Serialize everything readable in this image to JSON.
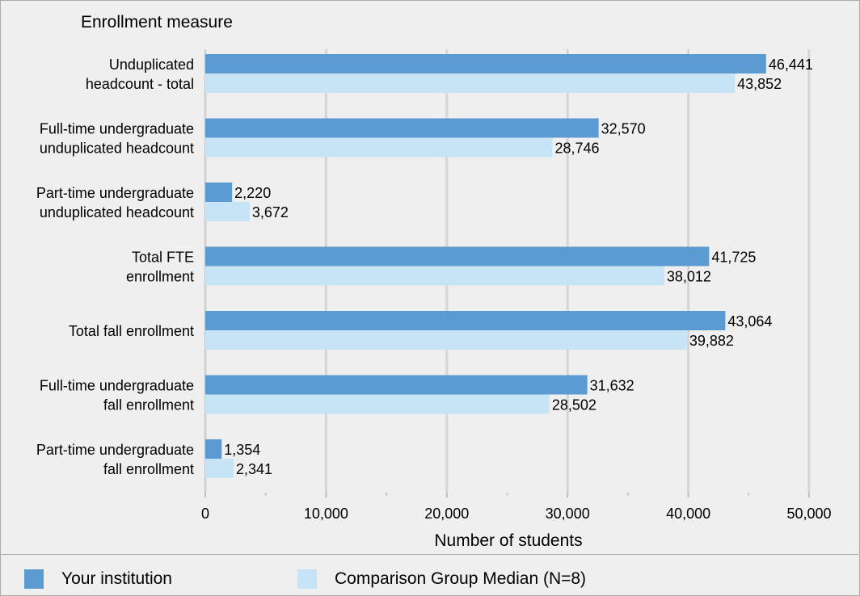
{
  "chart_data": {
    "type": "bar",
    "orientation": "horizontal",
    "category_axis_title": "Enrollment measure",
    "xlabel": "Number of students",
    "xlim": [
      0,
      50000
    ],
    "x_ticks": [
      0,
      10000,
      20000,
      30000,
      40000,
      50000
    ],
    "x_tick_labels": [
      "0",
      "10,000",
      "20,000",
      "30,000",
      "40,000",
      "50,000"
    ],
    "grid": true,
    "legend_position": "bottom",
    "categories": [
      [
        "Unduplicated",
        "headcount - total"
      ],
      [
        "Full-time undergraduate",
        "unduplicated headcount"
      ],
      [
        "Part-time undergraduate",
        "unduplicated headcount"
      ],
      [
        "Total FTE",
        "enrollment"
      ],
      [
        "Total fall enrollment"
      ],
      [
        "Full-time undergraduate",
        "fall enrollment"
      ],
      [
        "Part-time undergraduate",
        "fall enrollment"
      ]
    ],
    "series": [
      {
        "name": "Your institution",
        "color": "#5b9bd1",
        "values": [
          46441,
          32570,
          2220,
          41725,
          43064,
          31632,
          1354
        ],
        "labels": [
          "46,441",
          "32,570",
          "2,220",
          "41,725",
          "43,064",
          "31,632",
          "1,354"
        ]
      },
      {
        "name": "Comparison Group Median (N=8)",
        "color": "#c7e4f7",
        "values": [
          43852,
          28746,
          3672,
          38012,
          39882,
          28502,
          2341
        ],
        "labels": [
          "43,852",
          "28,746",
          "3,672",
          "38,012",
          "39,882",
          "28,502",
          "2,341"
        ]
      }
    ]
  }
}
